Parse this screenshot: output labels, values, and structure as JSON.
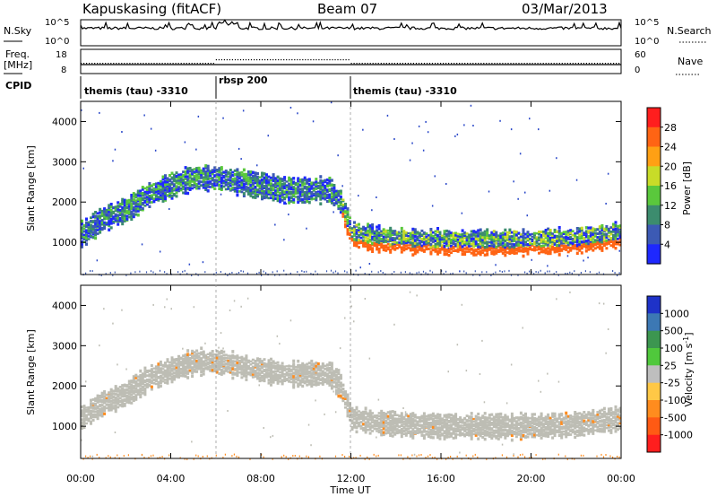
{
  "header": {
    "station": "Kapuskasing (fitACF)",
    "beam": "Beam 07",
    "date": "03/Mar/2013"
  },
  "noise_panel": {
    "left_label": "N.Sky",
    "right_label": "N.Search",
    "left_ticks": [
      "10^5",
      "10^0"
    ],
    "right_ticks": [
      "10^5",
      "10^0"
    ]
  },
  "freq_panel": {
    "left_label_1": "Freq.",
    "left_label_2": "[MHz]",
    "right_label": "Nave",
    "left_ticks": [
      "18",
      "8"
    ],
    "right_ticks": [
      "60",
      "0"
    ]
  },
  "cpid_panel": {
    "label": "CPID",
    "segments": [
      {
        "start_hour": 0,
        "end_hour": 6.0,
        "name": "themis (tau) -3310"
      },
      {
        "start_hour": 6.0,
        "end_hour": 11.9,
        "name": "rbsp 200"
      },
      {
        "start_hour": 11.9,
        "end_hour": 24,
        "name": "themis (tau) -3310"
      }
    ]
  },
  "x_axis": {
    "label": "Time UT",
    "ticks": [
      "00:00",
      "04:00",
      "08:00",
      "12:00",
      "16:00",
      "20:00",
      "00:00"
    ],
    "range_hours": [
      0,
      24
    ]
  },
  "chart_data": [
    {
      "type": "heatmap",
      "panel": "power",
      "ylabel": "Slant Range [km]",
      "yticks": [
        1000,
        2000,
        3000,
        4000
      ],
      "ylim": [
        200,
        4500
      ],
      "colorbar_label": "Power [dB]",
      "colorbar_ticks": [
        "4",
        "8",
        "12",
        "16",
        "20",
        "24",
        "28"
      ],
      "colorbar_colors": [
        "#1e28ff",
        "#3c5ab4",
        "#3c8c6e",
        "#5ac83c",
        "#c8dc28",
        "#ffa014",
        "#ff6414",
        "#ff1e1e"
      ],
      "ridge_range_km": {
        "hours": [
          0,
          1,
          2,
          3,
          4,
          5,
          6,
          7,
          8,
          9,
          10,
          11,
          11.5,
          12,
          13,
          14,
          16,
          18,
          20,
          22,
          24
        ],
        "km": [
          1200,
          1600,
          1800,
          2200,
          2400,
          2600,
          2600,
          2500,
          2400,
          2300,
          2300,
          2300,
          2000,
          1200,
          1100,
          1050,
          1000,
          1000,
          1000,
          1050,
          1200
        ]
      }
    },
    {
      "type": "heatmap",
      "panel": "velocity",
      "ylabel": "Slant Range [km]",
      "yticks": [
        1000,
        2000,
        3000,
        4000
      ],
      "ylim": [
        200,
        4500
      ],
      "colorbar_label": "Velocity [m s",
      "colorbar_unit_exp": "-1",
      "colorbar_ticks": [
        "1000",
        "500",
        "100",
        "25",
        "-25",
        "-100",
        "-500",
        "-1000"
      ],
      "colorbar_colors": [
        "#1e32c8",
        "#3c78b4",
        "#3c9650",
        "#50c83c",
        "#bebebe",
        "#ffc846",
        "#ff8c1e",
        "#ff5a14",
        "#ff1e1e"
      ]
    }
  ],
  "colors": {
    "band_gray": "#bdbdb4",
    "scatter_blue": "#2846c8"
  }
}
